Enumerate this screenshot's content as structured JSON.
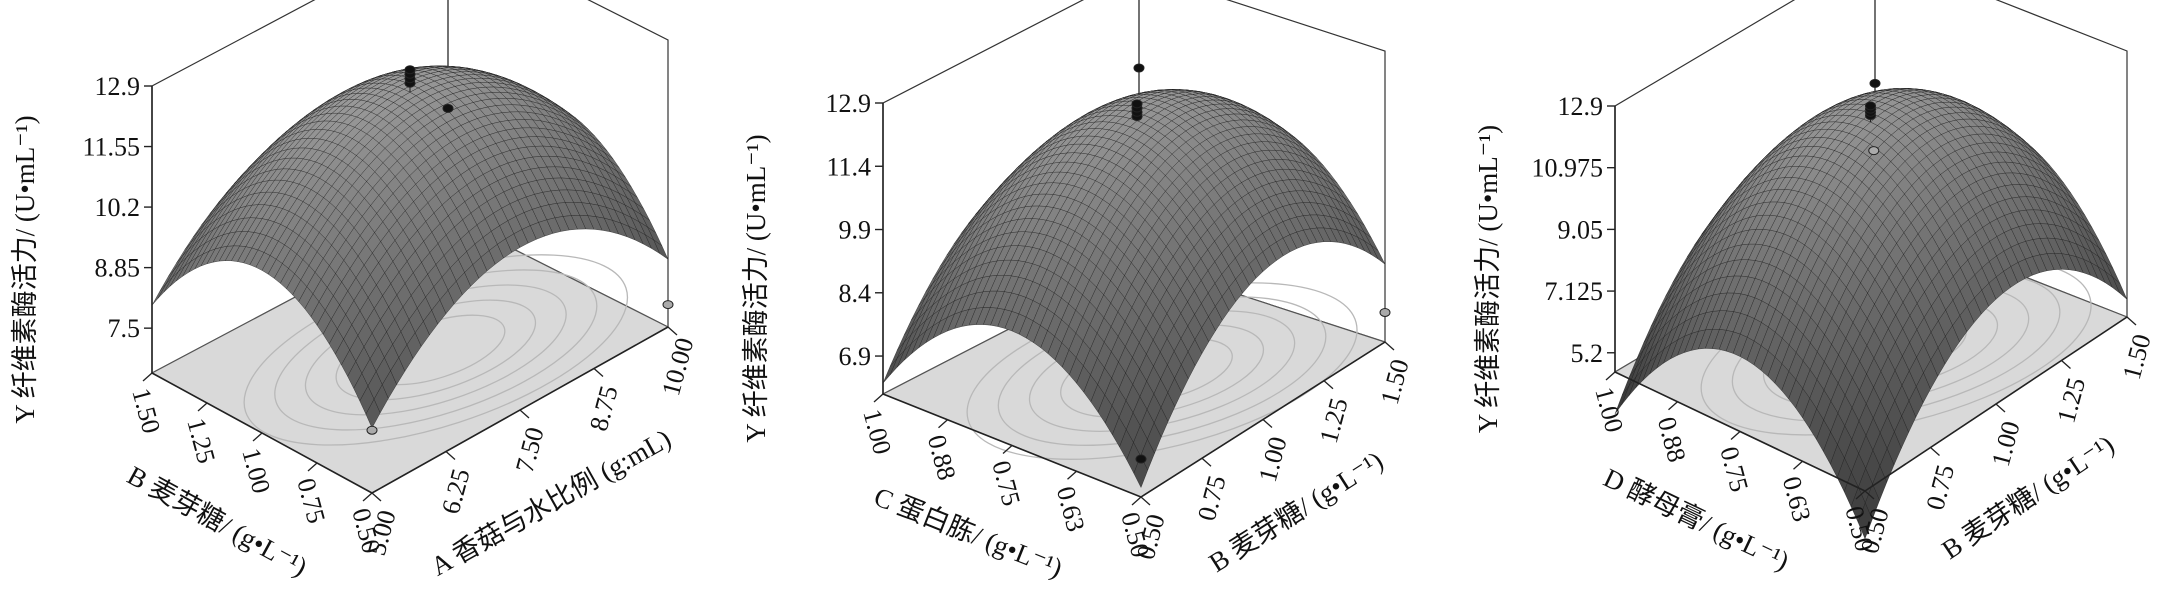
{
  "chart_data": [
    {
      "type": "surface3d",
      "z_label": "Y 纤维素酶活力/ (U•mL⁻¹)",
      "z_ticks": [
        "12.9",
        "11.55",
        "10.2",
        "8.85",
        "7.5"
      ],
      "z_range": [
        6.5,
        12.9
      ],
      "x_label": "A 香菇与水比例 (g:mL)",
      "x_ticks": [
        "5.00",
        "6.25",
        "7.50",
        "8.75",
        "10.00"
      ],
      "y_label": "B 麦芽糖/ (g•L⁻¹)",
      "y_ticks": [
        "0.50",
        "0.75",
        "1.00",
        "1.25",
        "1.50"
      ],
      "surface": {
        "corner_min": 8.4,
        "corner_max_left": 8.6,
        "corner_max_right": 8.7,
        "peak": 12.3
      },
      "design_points": [
        {
          "label": "center",
          "values": [
            12.5,
            12.6,
            12.7,
            12.8
          ]
        },
        {
          "label": "left",
          "value": 7.9
        },
        {
          "label": "right",
          "value": 8.9
        },
        {
          "label": "front",
          "value": 7.0
        }
      ]
    },
    {
      "type": "surface3d",
      "z_label": "Y 纤维素酶活力/ (U•mL⁻¹)",
      "z_ticks": [
        "12.9",
        "11.4",
        "9.9",
        "8.4",
        "6.9"
      ],
      "z_range": [
        6.0,
        12.9
      ],
      "x_label": "B 麦芽糖/ (g•L⁻¹)",
      "x_ticks": [
        "0.50",
        "0.75",
        "1.00",
        "1.25",
        "1.50"
      ],
      "y_label": "C 蛋白胨/ (g•L⁻¹)",
      "y_ticks": [
        "0.50",
        "0.63",
        "0.75",
        "0.88",
        "1.00"
      ],
      "surface": {
        "corner_min": 7.5,
        "corner_max_left": 7.6,
        "corner_max_right": 10.3,
        "peak": 12.0
      },
      "design_points": [
        {
          "label": "center",
          "values": [
            12.1,
            12.2,
            12.3,
            12.4
          ]
        },
        {
          "label": "left",
          "value": 6.9
        },
        {
          "label": "right",
          "value": 10.6
        },
        {
          "label": "front",
          "value": 6.7
        }
      ]
    },
    {
      "type": "surface3d",
      "z_label": "Y 纤维素酶活力/ (U•mL⁻¹)",
      "z_ticks": [
        "12.9",
        "10.975",
        "9.05",
        "7.125",
        "5.2"
      ],
      "z_range": [
        4.6,
        12.9
      ],
      "x_label": "B 麦芽糖/ (g•L⁻¹)",
      "x_ticks": [
        "0.50",
        "0.75",
        "1.00",
        "1.25",
        "1.50"
      ],
      "y_label": "D 酵母膏/ (g•L⁻¹)",
      "y_ticks": [
        "0.50",
        "0.63",
        "0.75",
        "0.88",
        "1.00"
      ],
      "surface": {
        "corner_min": 4.9,
        "corner_max_left": 5.5,
        "corner_max_right": 8.9,
        "peak": 11.7
      },
      "design_points": [
        {
          "label": "center",
          "values": [
            11.9,
            12.0,
            12.1,
            12.2
          ]
        },
        {
          "label": "right",
          "value": 8.8
        },
        {
          "label": "inner",
          "value": 7.9
        }
      ]
    }
  ]
}
